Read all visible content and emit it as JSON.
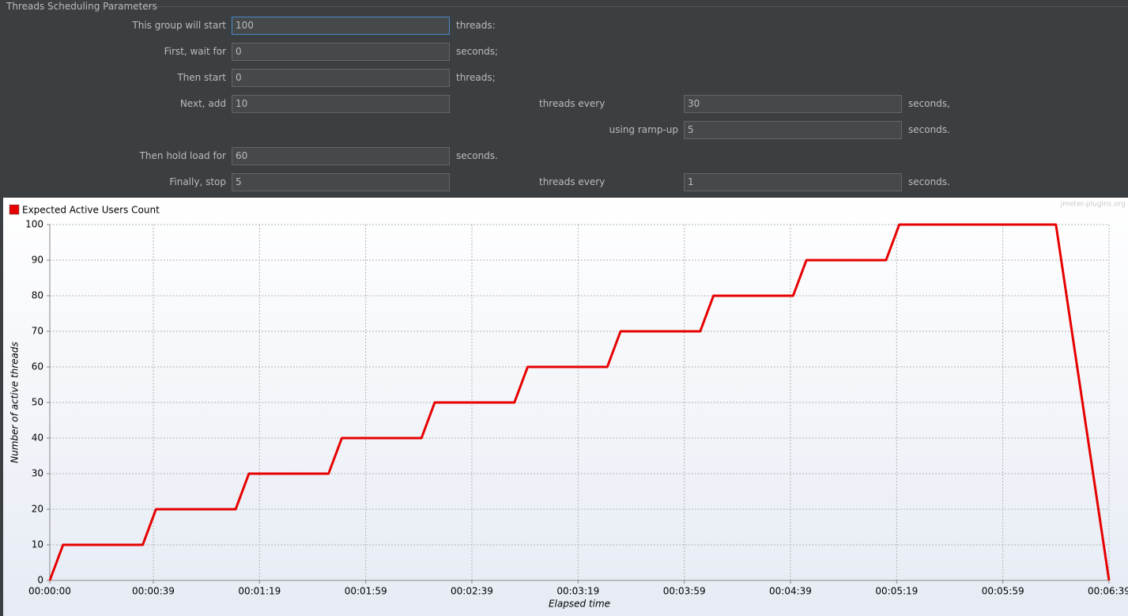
{
  "form": {
    "title": "Threads Scheduling Parameters",
    "rows": [
      {
        "label": "This group will start",
        "value": "100",
        "unit": "threads:"
      },
      {
        "label": "First, wait for",
        "value": "0",
        "unit": "seconds;"
      },
      {
        "label": "Then start",
        "value": "0",
        "unit": "threads;"
      },
      {
        "label": "Next, add",
        "value": "10",
        "label2": "threads every",
        "value2": "30",
        "unit": "seconds,"
      },
      {
        "label2": "using ramp-up",
        "value2": "5",
        "unit": "seconds."
      },
      {
        "label": "Then hold load for",
        "value": "60",
        "unit": "seconds."
      },
      {
        "label": "Finally, stop",
        "value": "5",
        "label2": "threads every",
        "value2": "1",
        "unit": "seconds."
      }
    ]
  },
  "chart_data": {
    "type": "line",
    "watermark": "jmeter-plugins.org",
    "xlabel": "Elapsed time",
    "ylabel": "Number of active threads",
    "x": [
      0,
      5,
      35,
      40,
      70,
      75,
      105,
      110,
      140,
      145,
      175,
      180,
      210,
      215,
      245,
      250,
      280,
      285,
      315,
      320,
      379,
      380,
      381,
      382,
      383,
      384,
      385,
      386,
      387,
      388,
      389,
      390,
      391,
      392,
      393,
      394,
      395,
      396,
      397,
      398,
      399
    ],
    "series": [
      {
        "name": "Expected Active Users Count",
        "color": "#e60000",
        "values": [
          0,
          10,
          10,
          20,
          20,
          30,
          30,
          40,
          40,
          50,
          50,
          60,
          60,
          70,
          70,
          80,
          80,
          90,
          90,
          100,
          100,
          95,
          90,
          85,
          80,
          75,
          70,
          65,
          60,
          55,
          50,
          45,
          40,
          35,
          30,
          25,
          20,
          15,
          10,
          5,
          0
        ]
      }
    ],
    "xlim": [
      0,
      399
    ],
    "xticks": [
      {
        "value": 0,
        "label": "00:00:00"
      },
      {
        "value": 39,
        "label": "00:00:39"
      },
      {
        "value": 79,
        "label": "00:01:19"
      },
      {
        "value": 119,
        "label": "00:01:59"
      },
      {
        "value": 159,
        "label": "00:02:39"
      },
      {
        "value": 199,
        "label": "00:03:19"
      },
      {
        "value": 239,
        "label": "00:03:59"
      },
      {
        "value": 279,
        "label": "00:04:39"
      },
      {
        "value": 319,
        "label": "00:05:19"
      },
      {
        "value": 359,
        "label": "00:05:59"
      },
      {
        "value": 399,
        "label": "00:06:39"
      }
    ],
    "ylim": [
      0,
      100
    ],
    "yticks": [
      0,
      10,
      20,
      30,
      40,
      50,
      60,
      70,
      80,
      90,
      100
    ],
    "grid": true
  }
}
